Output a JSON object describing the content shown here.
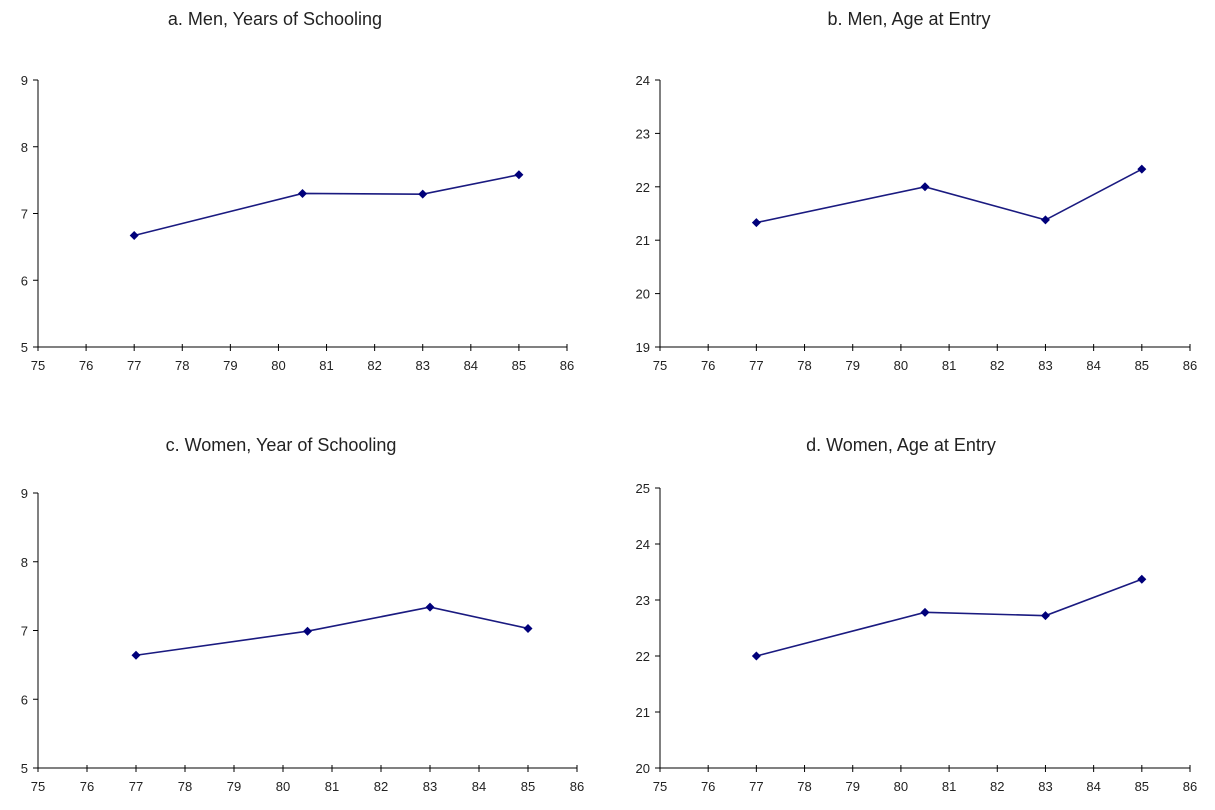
{
  "chart_data": [
    {
      "type": "line",
      "title": "a. Men, Years of Schooling",
      "xlabel": "",
      "ylabel": "",
      "x": [
        77,
        80.5,
        83,
        85
      ],
      "series": [
        {
          "values": [
            6.67,
            7.3,
            7.29,
            7.58
          ]
        }
      ],
      "xlim": [
        75,
        86
      ],
      "ylim": [
        5,
        9
      ],
      "xticks": [
        "75",
        "76",
        "77",
        "78",
        "79",
        "80",
        "81",
        "82",
        "83",
        "84",
        "85",
        "86"
      ],
      "yticks": [
        "5",
        "6",
        "7",
        "8",
        "9"
      ],
      "grid": false,
      "legend": "none"
    },
    {
      "type": "line",
      "title": "b. Men, Age at Entry",
      "xlabel": "",
      "ylabel": "",
      "x": [
        77,
        80.5,
        83,
        85
      ],
      "series": [
        {
          "values": [
            21.33,
            22.0,
            21.38,
            22.33
          ]
        }
      ],
      "xlim": [
        75,
        86
      ],
      "ylim": [
        19,
        24
      ],
      "xticks": [
        "75",
        "76",
        "77",
        "78",
        "79",
        "80",
        "81",
        "82",
        "83",
        "84",
        "85",
        "86"
      ],
      "yticks": [
        "19",
        "20",
        "21",
        "22",
        "23",
        "24"
      ],
      "grid": false,
      "legend": "none"
    },
    {
      "type": "line",
      "title": "c. Women, Year of Schooling",
      "xlabel": "",
      "ylabel": "",
      "x": [
        77,
        80.5,
        83,
        85
      ],
      "series": [
        {
          "values": [
            6.64,
            6.99,
            7.34,
            7.03
          ]
        }
      ],
      "xlim": [
        75,
        86
      ],
      "ylim": [
        5,
        9
      ],
      "xticks": [
        "75",
        "76",
        "77",
        "78",
        "79",
        "80",
        "81",
        "82",
        "83",
        "84",
        "85",
        "86"
      ],
      "yticks": [
        "5",
        "6",
        "7",
        "8",
        "9"
      ],
      "grid": false,
      "legend": "none"
    },
    {
      "type": "line",
      "title": "d. Women, Age at Entry",
      "xlabel": "",
      "ylabel": "",
      "x": [
        77,
        80.5,
        83,
        85
      ],
      "series": [
        {
          "values": [
            22.0,
            22.78,
            22.72,
            23.37
          ]
        }
      ],
      "xlim": [
        75,
        86
      ],
      "ylim": [
        20,
        25
      ],
      "xticks": [
        "75",
        "76",
        "77",
        "78",
        "79",
        "80",
        "81",
        "82",
        "83",
        "84",
        "85",
        "86"
      ],
      "yticks": [
        "20",
        "21",
        "22",
        "23",
        "24",
        "25"
      ],
      "grid": false,
      "legend": "none"
    }
  ],
  "colors": {
    "line": "#1a1a80",
    "marker": "#00007a",
    "axis": "#000000",
    "text": "#222222"
  }
}
